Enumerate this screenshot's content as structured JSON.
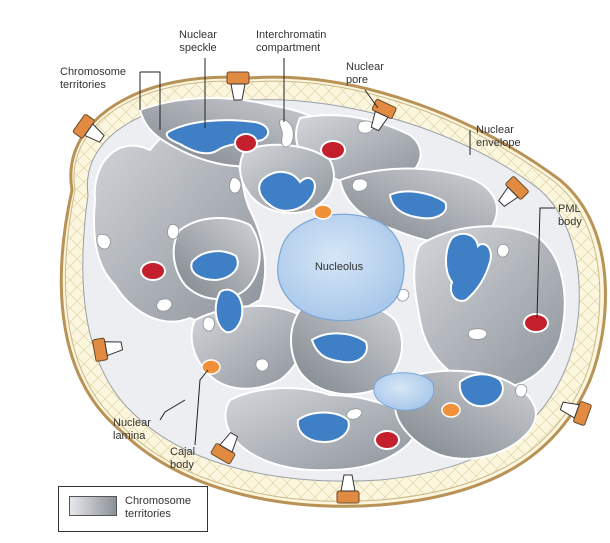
{
  "labels": {
    "nuclear_speckle": "Nuclear\nspeckle",
    "interchromatin": "Interchromatin\ncompartment",
    "chromosome_territories": "Chromosome\nterritories",
    "nuclear_pore": "Nuclear\npore",
    "nuclear_envelope": "Nuclear\nenvelope",
    "pml_body": "PML\nbody",
    "nucleolus": "Nucleolus",
    "nuclear_lamina": "Nuclear\nlamina",
    "cajal_body": "Cajal\nbody"
  },
  "legend": {
    "label": "Chromosome\nterritories"
  },
  "colors": {
    "envelope": "#b89256",
    "lamina_fill": "#fbf6dd",
    "nucleoplasm": "#eceef1",
    "territory_dark": "#9aa0a8",
    "territory_light": "#c4c8cd",
    "speckle": "#3f7fc6",
    "nucleolus": "#b8d3ee",
    "pml": "#c41f2d",
    "cajal": "#f0913a",
    "pore": "#e08a42"
  }
}
